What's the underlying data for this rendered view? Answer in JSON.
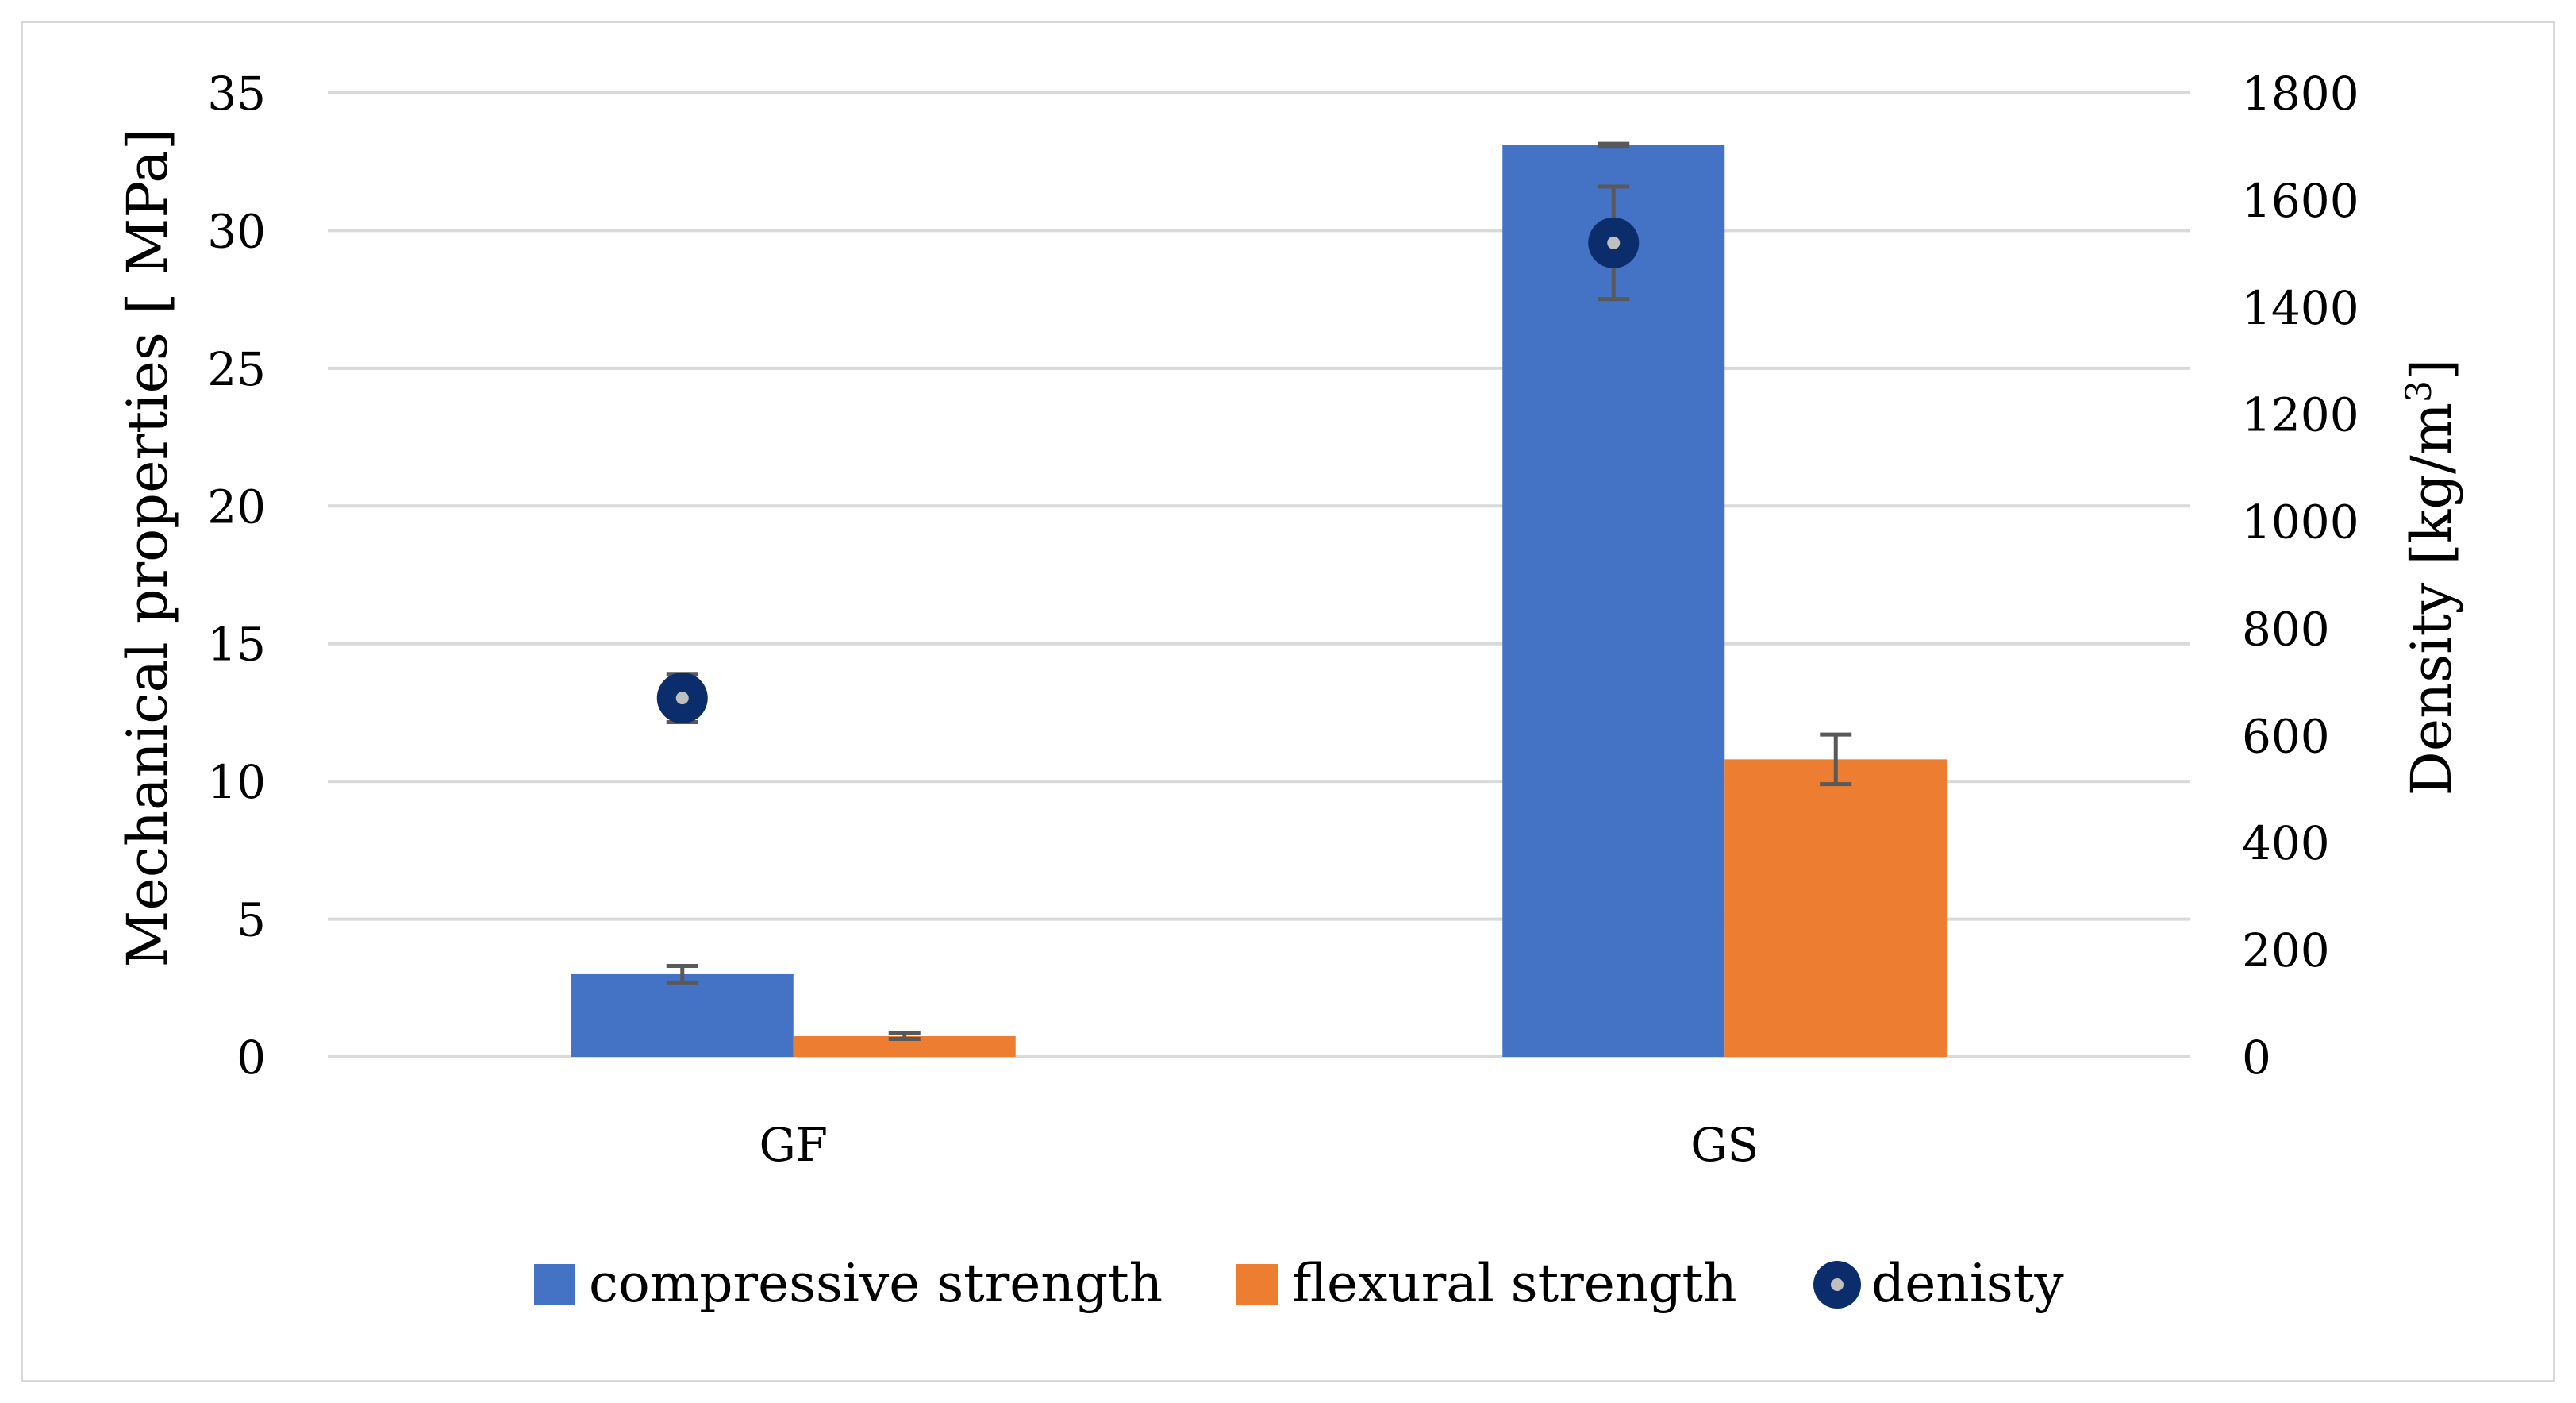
{
  "chart_data": {
    "type": "bar",
    "title": "",
    "categories": [
      "GF",
      "GS"
    ],
    "xlabel": "",
    "ylabel": "Mechanical properties [ MPa]",
    "y2label_main": "Density [kg/m",
    "y2label_sup": "3",
    "y2label_end": "]",
    "ylim": [
      0,
      35
    ],
    "y_ticks": [
      0,
      5,
      10,
      15,
      20,
      25,
      30,
      35
    ],
    "y2lim": [
      0,
      1800
    ],
    "y2_ticks": [
      0,
      200,
      400,
      600,
      800,
      1000,
      1200,
      1400,
      1600,
      1800
    ],
    "grid": true,
    "legend_position": "bottom",
    "series": [
      {
        "name": "compressive strength",
        "kind": "bar",
        "axis": "left",
        "color": "#4472c4",
        "values": [
          3.0,
          33.1
        ],
        "errors": [
          0.3,
          0.05
        ]
      },
      {
        "name": "flexural strength",
        "kind": "bar",
        "axis": "left",
        "color": "#ed7d31",
        "values": [
          0.75,
          10.8
        ],
        "errors": [
          0.1,
          0.9
        ]
      },
      {
        "name": "denisty",
        "kind": "scatter",
        "axis": "right",
        "color": "#0c2d6b",
        "center_color": "#bfbfbf",
        "values": [
          670,
          1520
        ],
        "errors": [
          45,
          105
        ]
      }
    ],
    "error_bar_color": "#595959"
  }
}
